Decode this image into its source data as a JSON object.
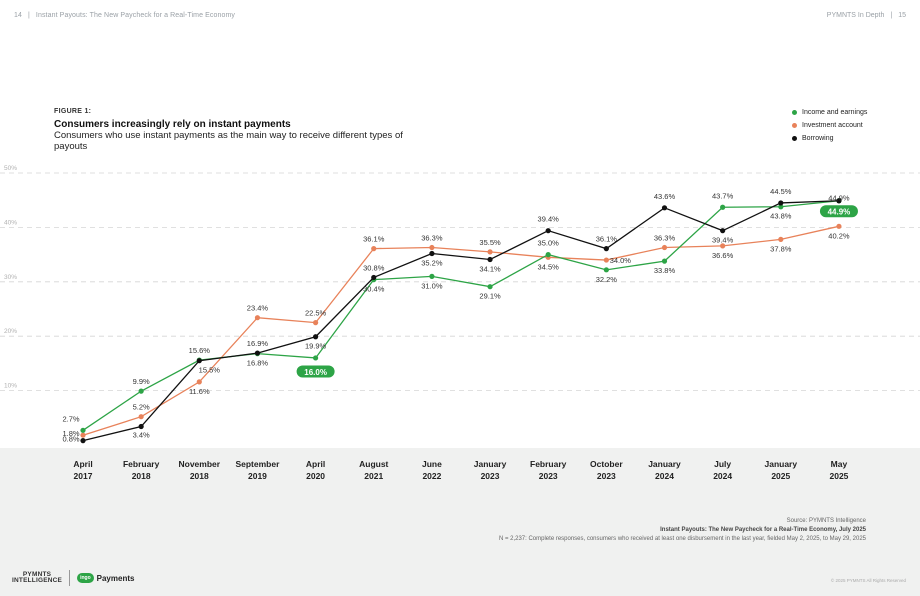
{
  "header": {
    "page_left": "14",
    "report_title": "Instant Payouts: The New Paycheck for a Real-Time Economy",
    "brand_right": "PYMNTS In Depth",
    "page_right": "15"
  },
  "figure": {
    "label": "FIGURE 1:",
    "title": "Consumers increasingly rely on instant payments",
    "subtitle": "Consumers who use instant payments as the main way to receive different types of payouts"
  },
  "colors": {
    "income": "#2da446",
    "investment": "#e8825a",
    "borrowing": "#111111",
    "grid": "#d5d5d5",
    "highlight": "#2da446"
  },
  "chart_data": {
    "type": "line",
    "categories": [
      [
        "April",
        "2017"
      ],
      [
        "February",
        "2018"
      ],
      [
        "November",
        "2018"
      ],
      [
        "September",
        "2019"
      ],
      [
        "April",
        "2020"
      ],
      [
        "August",
        "2021"
      ],
      [
        "June",
        "2022"
      ],
      [
        "January",
        "2023"
      ],
      [
        "February",
        "2023"
      ],
      [
        "October",
        "2023"
      ],
      [
        "January",
        "2024"
      ],
      [
        "July",
        "2024"
      ],
      [
        "January",
        "2025"
      ],
      [
        "May",
        "2025"
      ]
    ],
    "ylim": [
      0,
      50
    ],
    "y_ticks": [
      "10%",
      "20%",
      "30%",
      "40%",
      "50%"
    ],
    "grid": true,
    "legend_position": "top-right",
    "series": [
      {
        "key": "income",
        "name": "Income and earnings",
        "values": [
          2.7,
          9.9,
          15.6,
          16.8,
          16.0,
          30.4,
          31.0,
          29.1,
          35.0,
          32.2,
          33.8,
          43.7,
          43.8,
          44.9
        ],
        "labels": [
          "2.7%",
          "9.9%",
          "15.6%",
          "16.8%",
          "16.0%",
          "30.4%",
          "31.0%",
          "29.1%",
          "35.0%",
          "32.2%",
          "33.8%",
          "43.7%",
          "43.8%",
          "44.9%"
        ]
      },
      {
        "key": "investment",
        "name": "Investment account",
        "values": [
          1.8,
          5.2,
          11.6,
          23.4,
          22.5,
          36.1,
          36.3,
          35.5,
          34.5,
          34.0,
          36.3,
          36.6,
          37.8,
          40.2
        ],
        "labels": [
          "1.8%",
          "5.2%",
          "11.6%",
          "23.4%",
          "22.5%",
          "36.1%",
          "36.3%",
          "35.5%",
          "34.5%",
          "34.0%",
          "36.3%",
          "36.6%",
          "37.8%",
          "40.2%"
        ]
      },
      {
        "key": "borrowing",
        "name": "Borrowing",
        "values": [
          0.8,
          3.4,
          15.5,
          16.9,
          19.9,
          30.8,
          35.2,
          34.1,
          39.4,
          36.1,
          43.6,
          39.4,
          44.5,
          44.9
        ],
        "labels": [
          "0.8%",
          "3.4%",
          "15.5%",
          "16.9%",
          "19.9%",
          "30.8%",
          "35.2%",
          "34.1%",
          "39.4%",
          "36.1%",
          "43.6%",
          "39.4%",
          "44.5%",
          "44.9%"
        ]
      }
    ],
    "highlighted_labels": [
      {
        "series": "income",
        "index": 4
      },
      {
        "series": "income",
        "index": 13
      }
    ]
  },
  "source": {
    "line1": "Source: PYMNTS Intelligence",
    "line2": "Instant Payouts: The New Paycheck for a Real-Time Economy, July 2025",
    "line3": "N = 2,237: Complete responses, consumers who received at least one disbursement in the last year, fielded May 2, 2025, to May 29, 2025"
  },
  "footer": {
    "logo_line1": "PYMNTS",
    "logo_line2": "INTELLIGENCE",
    "partner_badge": "ingo",
    "partner_word": "Payments",
    "copyright": "© 2025 PYMNTS All Rights Reserved"
  }
}
